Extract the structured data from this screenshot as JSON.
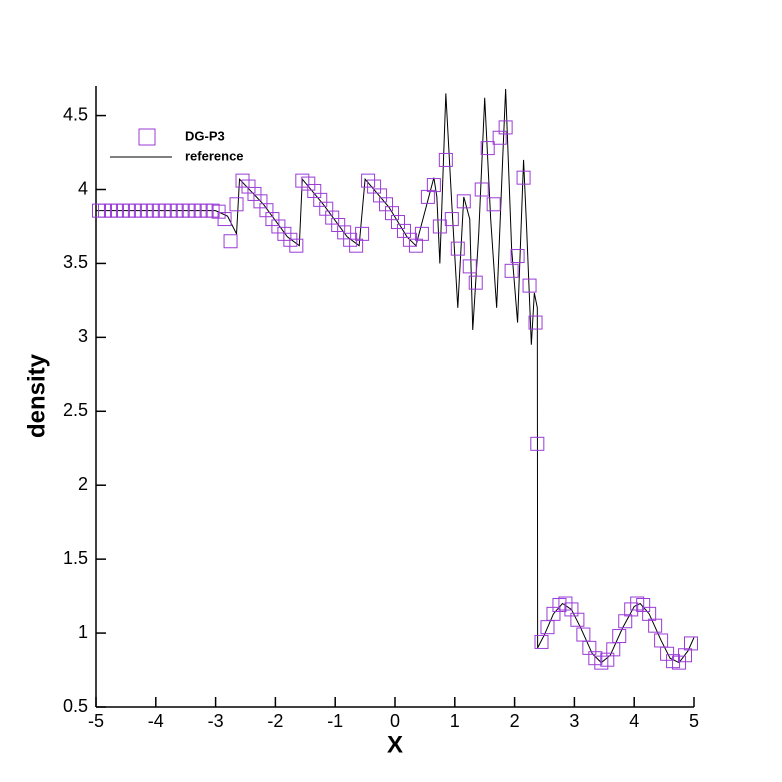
{
  "chart_data": {
    "type": "scatter-line",
    "xlabel": "X",
    "ylabel": "density",
    "xlim": [
      -5,
      5
    ],
    "ylim": [
      0.5,
      4.7
    ],
    "xticks": [
      -5,
      -4,
      -3,
      -2,
      -1,
      0,
      1,
      2,
      3,
      4,
      5
    ],
    "yticks": [
      0.5,
      1,
      1.5,
      2,
      2.5,
      3,
      3.5,
      4,
      4.5
    ],
    "legend": "upper left",
    "series": [
      {
        "name": "DG-P3",
        "color": "#9a3bd6",
        "marker": "square",
        "x": [
          -4.95,
          -4.85,
          -4.75,
          -4.65,
          -4.55,
          -4.45,
          -4.35,
          -4.25,
          -4.15,
          -4.05,
          -3.95,
          -3.85,
          -3.75,
          -3.65,
          -3.55,
          -3.45,
          -3.35,
          -3.25,
          -3.15,
          -3.05,
          -2.95,
          -2.85,
          -2.75,
          -2.65,
          -2.55,
          -2.45,
          -2.35,
          -2.25,
          -2.15,
          -2.05,
          -1.95,
          -1.85,
          -1.75,
          -1.65,
          -1.55,
          -1.45,
          -1.35,
          -1.25,
          -1.15,
          -1.05,
          -0.95,
          -0.85,
          -0.75,
          -0.65,
          -0.55,
          -0.45,
          -0.35,
          -0.25,
          -0.15,
          -0.05,
          0.05,
          0.15,
          0.25,
          0.35,
          0.45,
          0.55,
          0.65,
          0.75,
          0.85,
          0.95,
          1.05,
          1.15,
          1.25,
          1.35,
          1.45,
          1.55,
          1.65,
          1.75,
          1.85,
          1.95,
          2.05,
          2.15,
          2.25,
          2.35,
          2.38,
          2.45,
          2.55,
          2.65,
          2.75,
          2.85,
          2.95,
          3.05,
          3.15,
          3.25,
          3.35,
          3.45,
          3.55,
          3.65,
          3.75,
          3.85,
          3.95,
          4.05,
          4.15,
          4.25,
          4.35,
          4.45,
          4.55,
          4.65,
          4.75,
          4.85,
          4.95
        ],
        "values": [
          3.857,
          3.857,
          3.857,
          3.857,
          3.857,
          3.857,
          3.857,
          3.857,
          3.857,
          3.857,
          3.857,
          3.857,
          3.857,
          3.857,
          3.857,
          3.857,
          3.857,
          3.857,
          3.857,
          3.857,
          3.85,
          3.8,
          3.65,
          3.9,
          4.06,
          4.02,
          3.97,
          3.92,
          3.86,
          3.8,
          3.75,
          3.7,
          3.66,
          3.62,
          4.06,
          4.04,
          3.99,
          3.93,
          3.87,
          3.81,
          3.76,
          3.71,
          3.66,
          3.62,
          3.7,
          4.06,
          4.02,
          3.96,
          3.9,
          3.84,
          3.78,
          3.72,
          3.66,
          3.62,
          3.7,
          3.95,
          4.03,
          3.75,
          4.2,
          3.8,
          3.6,
          3.92,
          3.48,
          3.37,
          4.0,
          4.28,
          3.9,
          4.35,
          4.42,
          3.45,
          3.55,
          4.08,
          3.35,
          3.1,
          2.28,
          0.94,
          1.04,
          1.13,
          1.19,
          1.2,
          1.16,
          1.09,
          0.99,
          0.9,
          0.83,
          0.8,
          0.82,
          0.89,
          0.98,
          1.08,
          1.16,
          1.2,
          1.19,
          1.13,
          1.05,
          0.95,
          0.86,
          0.81,
          0.8,
          0.85,
          0.93
        ]
      },
      {
        "name": "reference",
        "color": "#000000",
        "marker": "line",
        "x": [
          -5,
          -3,
          -2.8,
          -2.65,
          -2.6,
          -2.2,
          -1.8,
          -1.6,
          -1.55,
          -1.2,
          -0.8,
          -0.6,
          -0.5,
          -0.1,
          0.2,
          0.35,
          0.5,
          0.65,
          0.7,
          0.75,
          0.85,
          0.95,
          1.05,
          1.15,
          1.25,
          1.3,
          1.4,
          1.5,
          1.6,
          1.7,
          1.8,
          1.85,
          1.95,
          2.05,
          2.15,
          2.2,
          2.28,
          2.33,
          2.38,
          2.385,
          2.5,
          2.65,
          2.8,
          2.95,
          3.1,
          3.3,
          3.45,
          3.6,
          3.8,
          4.0,
          4.1,
          4.25,
          4.45,
          4.6,
          4.75,
          4.9,
          5
        ],
        "values": [
          3.857,
          3.857,
          3.82,
          3.7,
          4.07,
          3.9,
          3.68,
          3.62,
          4.07,
          3.9,
          3.68,
          3.62,
          4.07,
          3.88,
          3.68,
          3.62,
          3.85,
          4.08,
          3.95,
          3.5,
          4.65,
          3.9,
          3.2,
          3.95,
          3.8,
          3.05,
          3.7,
          4.62,
          3.8,
          3.2,
          4.2,
          4.68,
          3.6,
          3.1,
          4.2,
          3.75,
          2.95,
          3.3,
          3.2,
          0.9,
          0.99,
          1.13,
          1.2,
          1.16,
          1.04,
          0.86,
          0.8,
          0.85,
          1.03,
          1.18,
          1.2,
          1.13,
          0.95,
          0.83,
          0.8,
          0.88,
          0.97
        ]
      }
    ]
  }
}
